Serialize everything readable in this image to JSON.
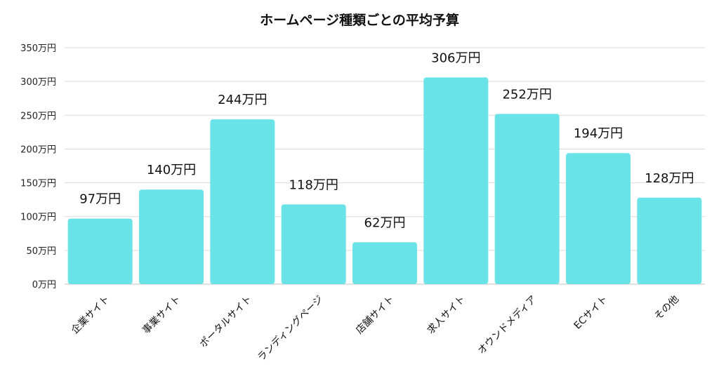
{
  "chart_data": {
    "type": "bar",
    "title": "ホームページ種類ごとの平均予算",
    "categories": [
      "企業サイト",
      "事業サイト",
      "ポータルサイト",
      "ランディングページ",
      "店舗サイト",
      "求人サイト",
      "オウンドメディア",
      "ECサイト",
      "その他"
    ],
    "values": [
      97,
      140,
      244,
      118,
      62,
      306,
      252,
      194,
      128
    ],
    "data_labels": [
      "97万円",
      "140万円",
      "244万円",
      "118万円",
      "62万円",
      "306万円",
      "252万円",
      "194万円",
      "128万円"
    ],
    "unit_suffix": "万円",
    "ylim": [
      0,
      350
    ],
    "yticks": [
      0,
      50,
      100,
      150,
      200,
      250,
      300,
      350
    ],
    "ytick_labels": [
      "0万円",
      "50万円",
      "100万円",
      "150万円",
      "200万円",
      "250万円",
      "300万円",
      "350万円"
    ],
    "xlabel": "",
    "ylabel": "",
    "grid": true,
    "bar_color": "#6ae3e8"
  }
}
